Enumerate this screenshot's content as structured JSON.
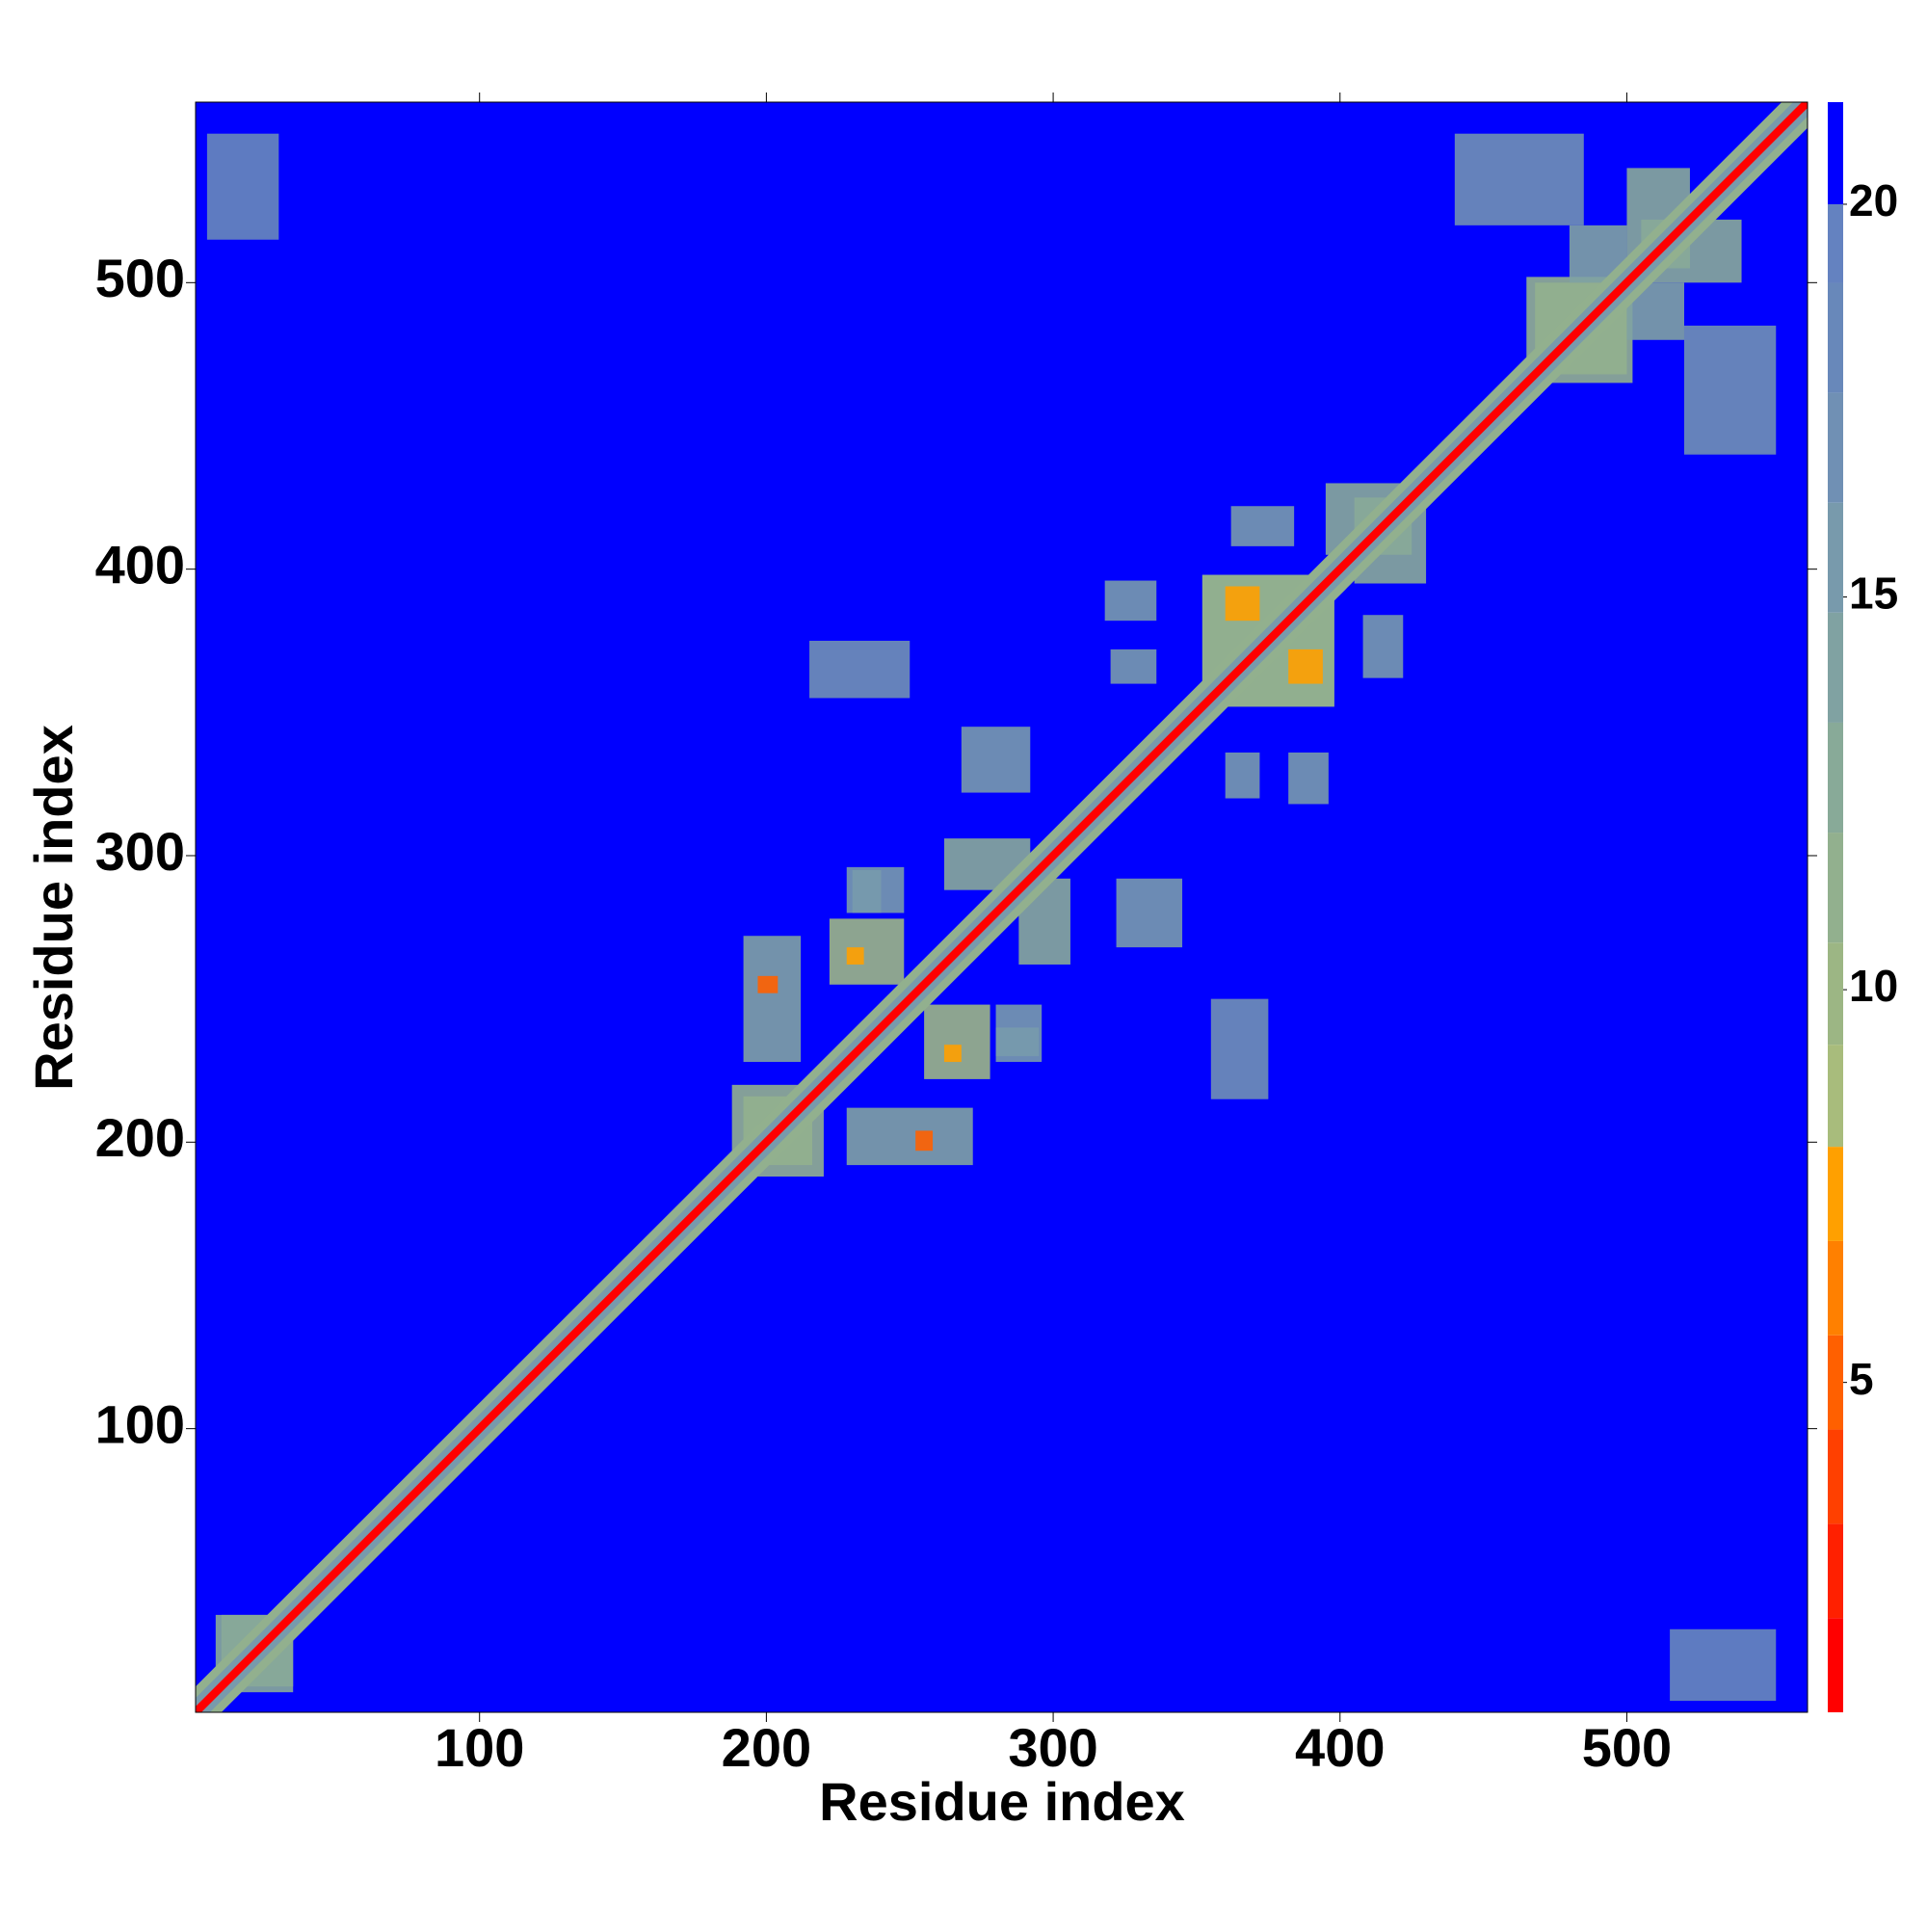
{
  "chart_data": {
    "type": "heatmap",
    "xlabel": "Residue index",
    "ylabel": "Residue index",
    "xlim": [
      1,
      563
    ],
    "ylim": [
      1,
      563
    ],
    "xticks": [
      100,
      200,
      300,
      400,
      500
    ],
    "yticks": [
      100,
      200,
      300,
      400,
      500
    ],
    "background": 21,
    "diagonal": [
      {
        "offset": 9,
        "value": 12
      },
      {
        "offset": 5,
        "value": 15
      },
      {
        "offset": 2,
        "value": 2
      }
    ],
    "contacts": [
      {
        "x": [
          188,
          216
        ],
        "y": [
          192,
          220
        ],
        "value": 12
      },
      {
        "x": [
          192,
          212
        ],
        "y": [
          228,
          272
        ],
        "value": 14
      },
      {
        "x": [
          197,
          204
        ],
        "y": [
          252,
          258
        ],
        "value": 5
      },
      {
        "x": [
          222,
          248
        ],
        "y": [
          255,
          278
        ],
        "value": 10
      },
      {
        "x": [
          228,
          234
        ],
        "y": [
          262,
          268
        ],
        "value": 7
      },
      {
        "x": [
          228,
          248
        ],
        "y": [
          280,
          296
        ],
        "value": 15
      },
      {
        "x": [
          262,
          292
        ],
        "y": [
          288,
          306
        ],
        "value": 13
      },
      {
        "x": [
          280,
          295
        ],
        "y": [
          230,
          240
        ],
        "value": 16
      },
      {
        "x": [
          215,
          250
        ],
        "y": [
          355,
          375
        ],
        "value": 17
      },
      {
        "x": [
          268,
          292
        ],
        "y": [
          322,
          345
        ],
        "value": 16
      },
      {
        "x": [
          318,
          336
        ],
        "y": [
          382,
          396
        ],
        "value": 15
      },
      {
        "x": [
          320,
          336
        ],
        "y": [
          360,
          372
        ],
        "value": 16
      },
      {
        "x": [
          352,
          398
        ],
        "y": [
          352,
          398
        ],
        "value": 11
      },
      {
        "x": [
          360,
          372
        ],
        "y": [
          382,
          394
        ],
        "value": 7
      },
      {
        "x": [
          362,
          384
        ],
        "y": [
          408,
          422
        ],
        "value": 16
      },
      {
        "x": [
          395,
          425
        ],
        "y": [
          405,
          430
        ],
        "value": 13
      },
      {
        "x": [
          465,
          500
        ],
        "y": [
          468,
          502
        ],
        "value": 12
      },
      {
        "x": [
          500,
          522
        ],
        "y": [
          505,
          540
        ],
        "value": 13
      },
      {
        "x": [
          440,
          485
        ],
        "y": [
          520,
          552
        ],
        "value": 17
      },
      {
        "x": [
          480,
          500
        ],
        "y": [
          500,
          520
        ],
        "value": 14
      },
      {
        "x": [
          5,
          30
        ],
        "y": [
          515,
          552
        ],
        "value": 18
      },
      {
        "x": [
          8,
          35
        ],
        "y": [
          10,
          35
        ],
        "value": 13
      }
    ],
    "colorbar": {
      "bounds": [
        0.8,
        2.0,
        3.2,
        4.4,
        5.6,
        6.8,
        8.0,
        9.3,
        10.6,
        12.0,
        13.4,
        14.8,
        16.2,
        17.6,
        19.0,
        20.0,
        21.3
      ],
      "colors": [
        "#ff0000",
        "#ff2000",
        "#ff4000",
        "#ff6000",
        "#ff8000",
        "#ffa000",
        "#a8bc7c",
        "#9cb684",
        "#92b08e",
        "#88aa98",
        "#80a2a2",
        "#789aac",
        "#7090b4",
        "#6888ba",
        "#6482c0",
        "#0000ff"
      ],
      "ticks": [
        5,
        10,
        15,
        20
      ]
    }
  }
}
